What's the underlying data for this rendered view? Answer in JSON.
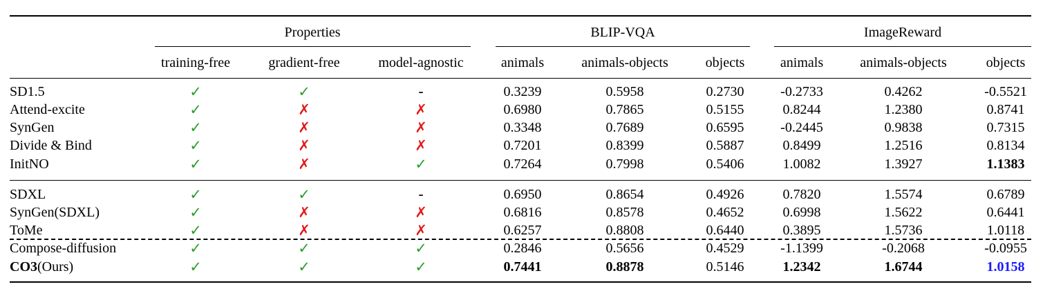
{
  "headers": {
    "groups": [
      "Properties",
      "BLIP-VQA",
      "ImageReward"
    ],
    "columns": [
      "training-free",
      "gradient-free",
      "model-agnostic",
      "animals",
      "animals-objects",
      "objects",
      "animals",
      "animals-objects",
      "objects"
    ]
  },
  "marks": {
    "check": "✓",
    "cross": "✗",
    "none": "-"
  },
  "colors": {
    "check": "#2e9b2e",
    "cross": "#e01b1b",
    "highlight": "#1a1aff"
  },
  "rows": [
    {
      "method": "SD1.5",
      "props": [
        "check",
        "check",
        "none"
      ],
      "vals": [
        "0.3239",
        "0.5958",
        "0.2730",
        "-0.2733",
        "0.4262",
        "-0.5521"
      ]
    },
    {
      "method": "Attend-excite",
      "props": [
        "check",
        "cross",
        "cross"
      ],
      "vals": [
        "0.6980",
        "0.7865",
        "0.5155",
        "0.8244",
        "1.2380",
        "0.8741"
      ]
    },
    {
      "method": "SynGen",
      "props": [
        "check",
        "cross",
        "cross"
      ],
      "vals": [
        "0.3348",
        "0.7689",
        "0.6595",
        "-0.2445",
        "0.9838",
        "0.7315"
      ]
    },
    {
      "method": "Divide & Bind",
      "props": [
        "check",
        "cross",
        "cross"
      ],
      "vals": [
        "0.7201",
        "0.8399",
        "0.5887",
        "0.8499",
        "1.2516",
        "0.8134"
      ]
    },
    {
      "method": "InitNO",
      "props": [
        "check",
        "cross",
        "check"
      ],
      "vals": [
        "0.7264",
        "0.7998",
        "0.5406",
        "1.0082",
        "1.3927",
        "1.1383"
      ],
      "bold_vals": [
        5
      ]
    },
    {
      "method": "SDXL",
      "props": [
        "check",
        "check",
        "none"
      ],
      "vals": [
        "0.6950",
        "0.8654",
        "0.4926",
        "0.7820",
        "1.5574",
        "0.6789"
      ]
    },
    {
      "method": "SynGen(SDXL)",
      "props": [
        "check",
        "cross",
        "cross"
      ],
      "vals": [
        "0.6816",
        "0.8578",
        "0.4652",
        "0.6998",
        "1.5622",
        "0.6441"
      ]
    },
    {
      "method": "ToMe",
      "props": [
        "check",
        "cross",
        "cross"
      ],
      "vals": [
        "0.6257",
        "0.8808",
        "0.6440",
        "0.3895",
        "1.5736",
        "1.0118"
      ]
    },
    {
      "method": "Compose-diffusion",
      "props": [
        "check",
        "check",
        "check"
      ],
      "vals": [
        "0.2846",
        "0.5656",
        "0.4529",
        "-1.1399",
        "-0.2068",
        "-0.0955"
      ]
    },
    {
      "method_bold": "CO3",
      "method_rest": "(Ours)",
      "props": [
        "check",
        "check",
        "check"
      ],
      "vals": [
        "0.7441",
        "0.8878",
        "0.5146",
        "1.2342",
        "1.6744",
        "1.0158"
      ],
      "bold_vals": [
        0,
        1,
        3,
        4
      ],
      "blue_vals": [
        5
      ]
    }
  ]
}
